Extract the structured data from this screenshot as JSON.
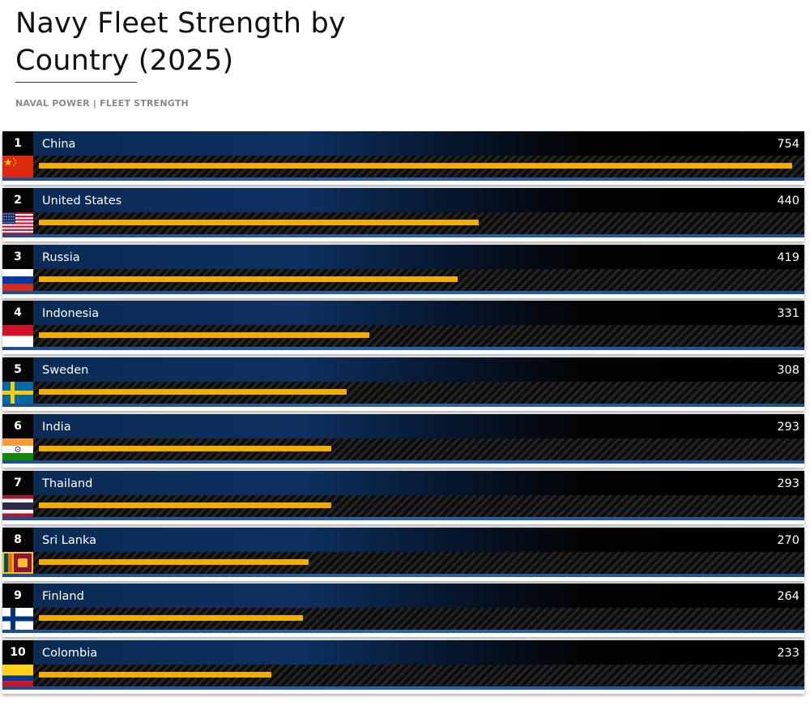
{
  "page": {
    "title": "Navy Fleet Strength by Country (2025)",
    "subtitle": "NAVAL POWER | FLEET STRENGTH"
  },
  "colors": {
    "bar": "#f2ae00",
    "name_band_start": "#0b2b55",
    "accent_strip": "#2a62a8"
  },
  "chart_data": {
    "type": "bar",
    "orientation": "horizontal",
    "title": "Navy Fleet Strength by Country (2025)",
    "subtitle": "NAVAL POWER | FLEET STRENGTH",
    "xlim": [
      0,
      754
    ],
    "grid": false,
    "legend": "none",
    "categories": [
      "China",
      "United States",
      "Russia",
      "Indonesia",
      "Sweden",
      "India",
      "Thailand",
      "Sri Lanka",
      "Finland",
      "Colombia"
    ],
    "ranks": [
      "1",
      "2",
      "3",
      "4",
      "5",
      "6",
      "7",
      "8",
      "9",
      "10"
    ],
    "values": [
      754,
      440,
      419,
      331,
      308,
      293,
      293,
      270,
      264,
      233
    ],
    "flags": [
      "china-flag",
      "usa-flag",
      "russia-flag",
      "indonesia-flag",
      "sweden-flag",
      "india-flag",
      "thailand-flag",
      "sri-lanka-flag",
      "finland-flag",
      "colombia-flag"
    ]
  }
}
